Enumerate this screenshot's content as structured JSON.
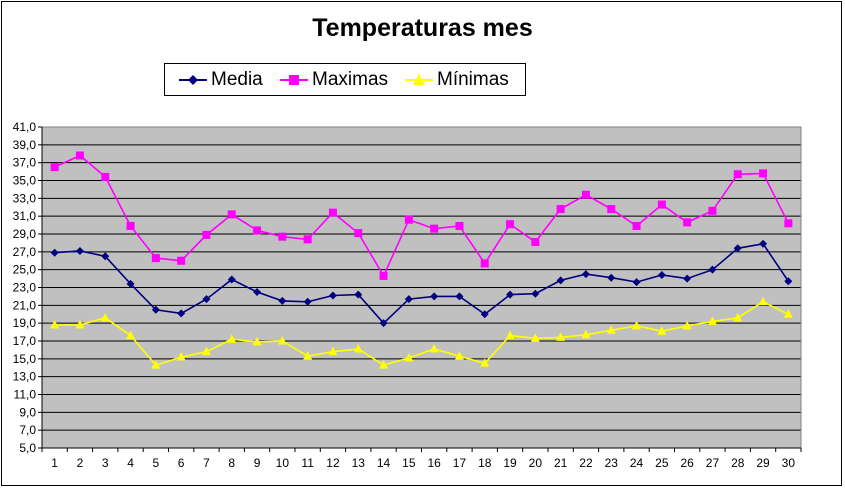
{
  "chart_data": {
    "type": "line",
    "title": "Temperaturas mes",
    "xlabel": "",
    "ylabel": "",
    "x": [
      1,
      2,
      3,
      4,
      5,
      6,
      7,
      8,
      9,
      10,
      11,
      12,
      13,
      14,
      15,
      16,
      17,
      18,
      19,
      20,
      21,
      22,
      23,
      24,
      25,
      26,
      27,
      28,
      29,
      30
    ],
    "ylim": [
      5.0,
      41.0
    ],
    "ytick_step": 2.0,
    "y_tick_labels": [
      "41,0",
      "39,0",
      "37,0",
      "35,0",
      "33,0",
      "31,0",
      "29,0",
      "27,0",
      "25,0",
      "23,0",
      "21,0",
      "19,0",
      "17,0",
      "15,0",
      "13,0",
      "11,0",
      "9,0",
      "7,0",
      "5,0"
    ],
    "grid": true,
    "legend_position": "top",
    "plot_background": "#c0c0c0",
    "series": [
      {
        "name": "Media",
        "color": "#000080",
        "marker": "diamond",
        "values": [
          26.9,
          27.1,
          26.5,
          23.4,
          20.5,
          20.1,
          21.7,
          23.9,
          22.5,
          21.5,
          21.4,
          22.1,
          22.2,
          19.0,
          21.7,
          22.0,
          22.0,
          20.0,
          22.2,
          22.3,
          23.8,
          24.5,
          24.1,
          23.6,
          24.4,
          24.0,
          25.0,
          27.4,
          27.9,
          23.7
        ]
      },
      {
        "name": "Maximas",
        "color": "#ff00ff",
        "marker": "square",
        "values": [
          36.5,
          37.8,
          35.4,
          29.9,
          26.3,
          26.0,
          28.9,
          31.2,
          29.4,
          28.7,
          28.4,
          31.4,
          29.1,
          24.3,
          30.6,
          29.6,
          29.9,
          25.7,
          30.1,
          28.1,
          31.8,
          33.4,
          31.8,
          29.9,
          32.3,
          30.3,
          31.6,
          35.7,
          35.8,
          30.2
        ]
      },
      {
        "name": "Mínimas",
        "color": "#ffff00",
        "marker": "triangle",
        "values": [
          18.8,
          18.8,
          19.6,
          17.6,
          14.3,
          15.2,
          15.8,
          17.2,
          16.9,
          17.0,
          15.3,
          15.8,
          16.1,
          14.3,
          15.1,
          16.1,
          15.3,
          14.5,
          17.6,
          17.3,
          17.4,
          17.7,
          18.2,
          18.7,
          18.1,
          18.7,
          19.2,
          19.6,
          21.4,
          20.0
        ]
      }
    ]
  }
}
